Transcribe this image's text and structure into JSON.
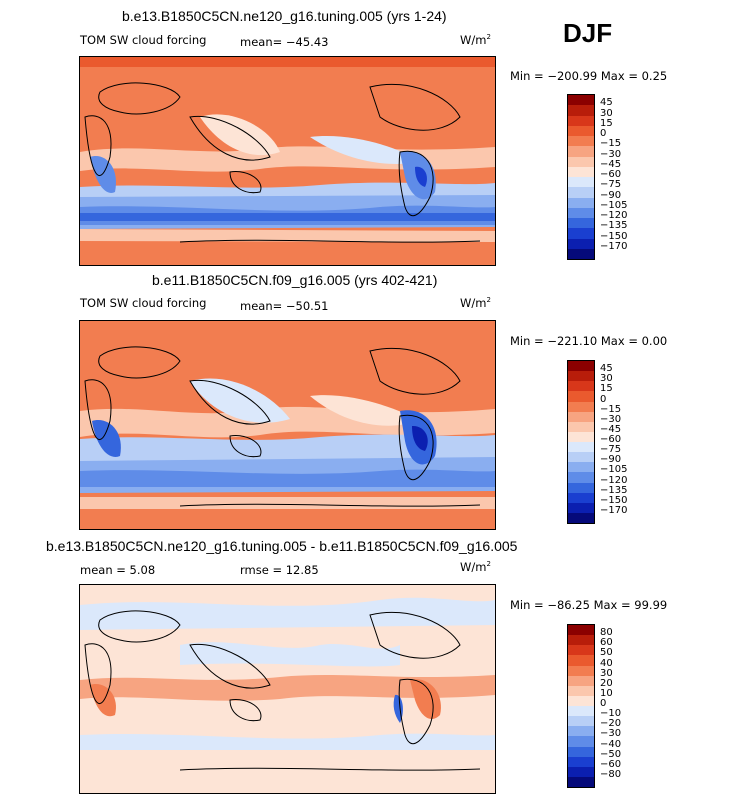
{
  "season": "DJF",
  "chart_data": [
    {
      "type": "heatmap",
      "title": "b.e13.B1850C5CN.ne120_g16.tuning.005 (yrs 1-24)",
      "left_label": "TOM SW cloud forcing",
      "mean_text": "mean= −45.43",
      "units_main": "W/m",
      "units_exp": "2",
      "minmax_text": "Min = −200.99 Max =    0.25",
      "colorbar_labels": [
        "45",
        "30",
        "15",
        "0",
        "−15",
        "−30",
        "−45",
        "−60",
        "−75",
        "−90",
        "−105",
        "−120",
        "−135",
        "−150",
        "−170"
      ],
      "colorbar_colors": [
        "#8b0000",
        "#b81d0a",
        "#d8371a",
        "#ea5a2e",
        "#f27d50",
        "#f7a481",
        "#fbc7ad",
        "#fde4d6",
        "#dbe8fb",
        "#b8cff6",
        "#8aaef0",
        "#5f8ce8",
        "#3566dd",
        "#1a3fd0",
        "#0b1fb0",
        "#050a7a"
      ]
    },
    {
      "type": "heatmap",
      "title": "b.e11.B1850C5CN.f09_g16.005 (yrs 402-421)",
      "left_label": "TOM SW cloud forcing",
      "mean_text": "mean= −50.51",
      "units_main": "W/m",
      "units_exp": "2",
      "minmax_text": "Min = −221.10 Max =    0.00",
      "colorbar_labels": [
        "45",
        "30",
        "15",
        "0",
        "−15",
        "−30",
        "−45",
        "−60",
        "−75",
        "−90",
        "−105",
        "−120",
        "−135",
        "−150",
        "−170"
      ],
      "colorbar_colors": [
        "#8b0000",
        "#b81d0a",
        "#d8371a",
        "#ea5a2e",
        "#f27d50",
        "#f7a481",
        "#fbc7ad",
        "#fde4d6",
        "#dbe8fb",
        "#b8cff6",
        "#8aaef0",
        "#5f8ce8",
        "#3566dd",
        "#1a3fd0",
        "#0b1fb0",
        "#050a7a"
      ]
    },
    {
      "type": "heatmap",
      "title": "b.e13.B1850C5CN.ne120_g16.tuning.005 - b.e11.B1850C5CN.f09_g16.005",
      "mean_text": "mean =    5.08",
      "rmse_text": "rmse =   12.85",
      "units_main": "W/m",
      "units_exp": "2",
      "minmax_text": "Min = −86.25 Max =   99.99",
      "colorbar_labels": [
        "80",
        "60",
        "50",
        "40",
        "30",
        "20",
        "10",
        "0",
        "−10",
        "−20",
        "−30",
        "−40",
        "−50",
        "−60",
        "−80"
      ],
      "colorbar_colors": [
        "#8b0000",
        "#b81d0a",
        "#d8371a",
        "#ea5a2e",
        "#f27d50",
        "#f7a481",
        "#fbc7ad",
        "#fde4d6",
        "#dbe8fb",
        "#b8cff6",
        "#8aaef0",
        "#5f8ce8",
        "#3566dd",
        "#1a3fd0",
        "#0b1fb0",
        "#050a7a"
      ]
    }
  ]
}
